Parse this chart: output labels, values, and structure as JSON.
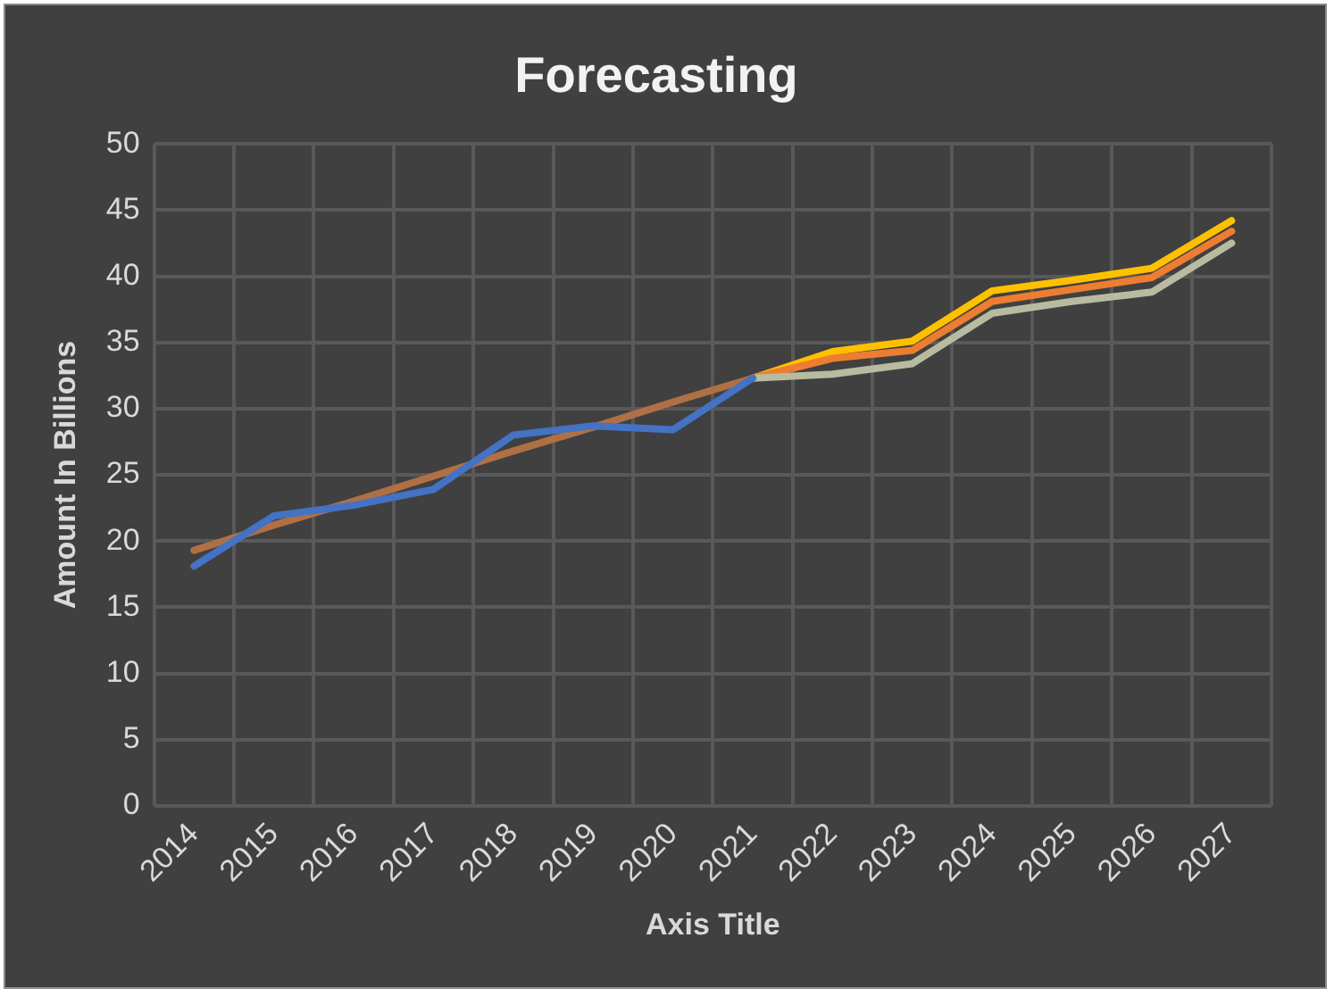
{
  "chart_data": {
    "type": "line",
    "title": "Forecasting",
    "xlabel": "Axis Title",
    "ylabel": "Amount In Billions",
    "categories": [
      "2014",
      "2015",
      "2016",
      "2017",
      "2018",
      "2019",
      "2020",
      "2021",
      "2022",
      "2023",
      "2024",
      "2025",
      "2026",
      "2027"
    ],
    "series": [
      {
        "color": "#4472c4",
        "values": [
          18.1,
          21.9,
          22.7,
          23.9,
          28.0,
          28.7,
          28.4,
          32.3,
          null,
          null,
          null,
          null,
          null,
          null
        ]
      },
      {
        "color": "#b07045",
        "values": [
          19.3,
          21.2,
          23.0,
          24.9,
          26.8,
          28.6,
          30.5,
          32.3,
          null,
          null,
          null,
          null,
          null,
          null
        ]
      },
      {
        "color": "#b8bba0",
        "values": [
          null,
          null,
          null,
          null,
          null,
          null,
          null,
          32.3,
          32.6,
          33.4,
          37.2,
          38.1,
          38.8,
          42.5
        ]
      },
      {
        "color": "#ed7d31",
        "values": [
          null,
          null,
          null,
          null,
          null,
          null,
          null,
          32.3,
          33.8,
          34.4,
          38.1,
          39.0,
          39.9,
          43.4
        ]
      },
      {
        "color": "#ffc000",
        "values": [
          null,
          null,
          null,
          null,
          null,
          null,
          null,
          32.3,
          34.3,
          35.1,
          38.9,
          39.7,
          40.6,
          44.2
        ]
      }
    ],
    "ylim": [
      0,
      50
    ],
    "yticks": [
      0,
      5,
      10,
      15,
      20,
      25,
      30,
      35,
      40,
      45,
      50
    ],
    "grid": true,
    "legend": false,
    "marker": "none",
    "line_style": "solid"
  }
}
